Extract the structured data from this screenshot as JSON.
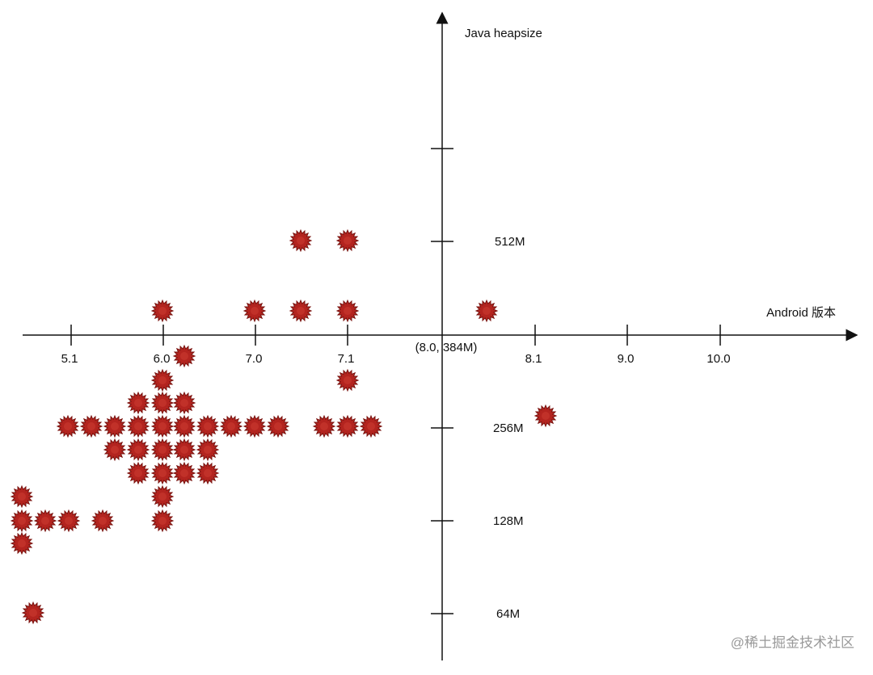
{
  "x_axis": {
    "title": "Android 版本",
    "ticks": [
      "5.1",
      "6.0",
      "7.0",
      "7.1",
      "8.1",
      "9.0",
      "10.0"
    ]
  },
  "y_axis": {
    "title": "Java heapsize",
    "ticks": [
      "512M",
      "256M",
      "128M",
      "64M"
    ]
  },
  "origin_label": "(8.0, 384M)",
  "watermark": "@稀土掘金技术社区"
}
